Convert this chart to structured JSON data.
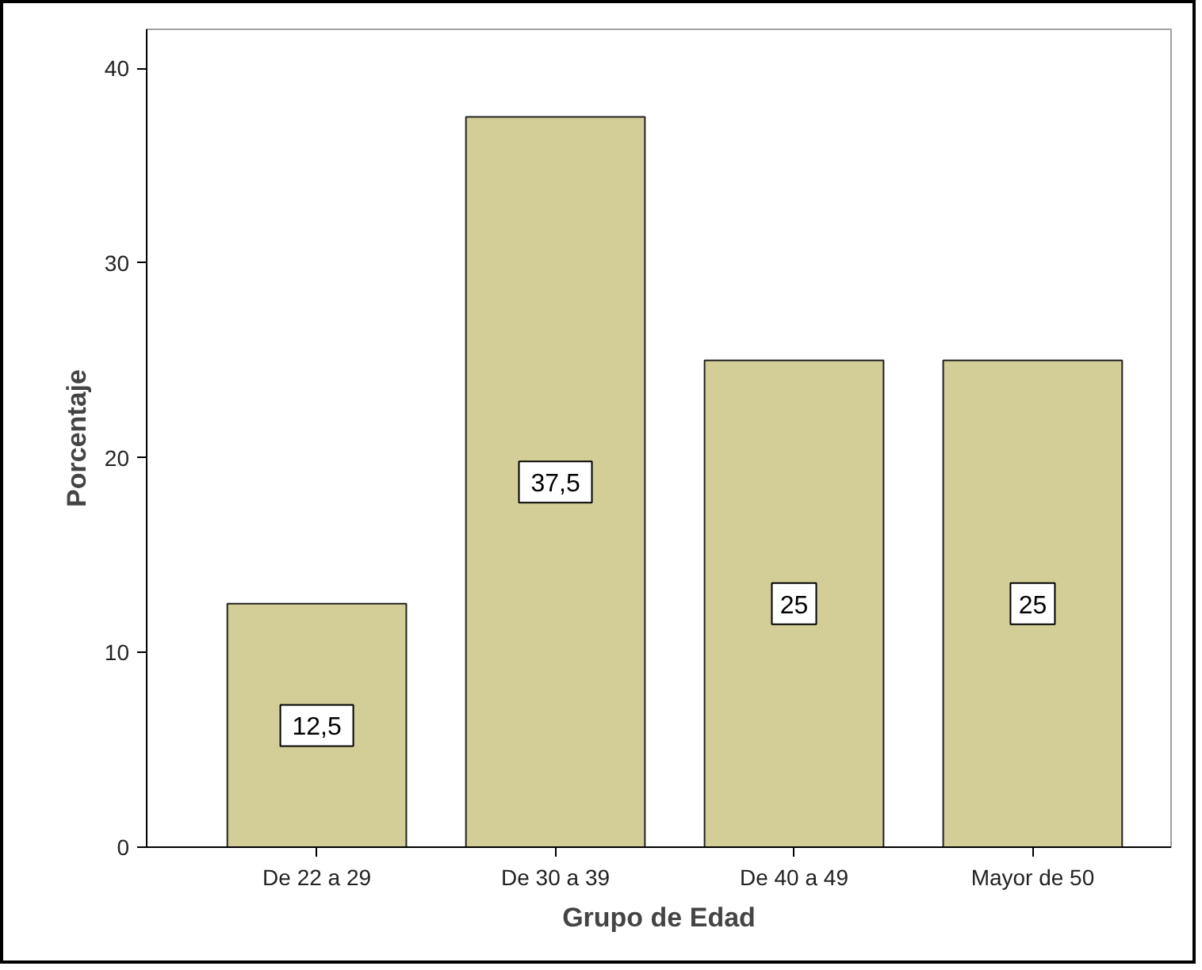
{
  "chart_data": {
    "type": "bar",
    "xlabel": "Grupo de Edad",
    "ylabel": "Porcentaje",
    "categories": [
      "De 22 a 29",
      "De 30 a 39",
      "De 40 a 49",
      "Mayor de 50"
    ],
    "values": [
      12.5,
      37.5,
      25,
      25
    ],
    "value_labels": [
      "12,5",
      "37,5",
      "25",
      "25"
    ],
    "color": "#d3ce97",
    "ylim": [
      0,
      42
    ],
    "yticks": [
      0,
      10,
      20,
      30,
      40
    ],
    "grid": false
  }
}
